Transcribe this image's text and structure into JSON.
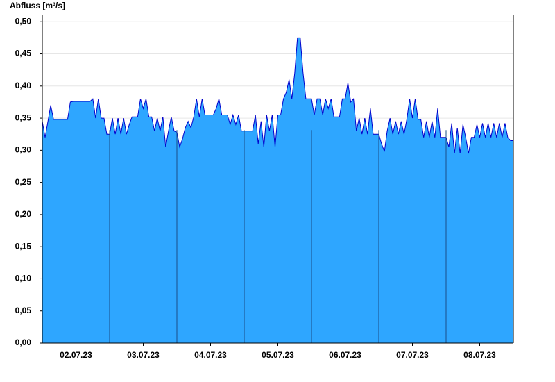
{
  "chart_data": {
    "type": "area",
    "title": "Abfluss [m³/s]",
    "x": [
      0,
      1,
      2,
      3,
      4,
      5,
      6,
      7,
      8,
      9,
      10,
      11,
      12,
      13,
      14,
      15,
      16,
      17,
      18,
      19,
      20,
      21,
      22,
      23,
      24,
      25,
      26,
      27,
      28,
      29,
      30,
      31,
      32,
      33,
      34,
      35,
      36,
      37,
      38,
      39,
      40,
      41,
      42,
      43,
      44,
      45,
      46,
      47,
      48,
      49,
      50,
      51,
      52,
      53,
      54,
      55,
      56,
      57,
      58,
      59,
      60,
      61,
      62,
      63,
      64,
      65,
      66,
      67,
      68,
      69,
      70,
      71,
      72,
      73,
      74,
      75,
      76,
      77,
      78,
      79,
      80,
      81,
      82,
      83,
      84,
      85,
      86,
      87,
      88,
      89,
      90,
      91,
      92,
      93,
      94,
      95,
      96,
      97,
      98,
      99,
      100,
      101,
      102,
      103,
      104,
      105,
      106,
      107,
      108,
      109,
      110,
      111,
      112,
      113,
      114,
      115,
      116,
      117,
      118,
      119,
      120,
      121,
      122,
      123,
      124,
      125,
      126,
      127,
      128,
      129,
      130,
      131,
      132,
      133,
      134,
      135,
      136,
      137,
      138,
      139,
      140,
      141,
      142,
      143,
      144,
      145,
      146,
      147,
      148,
      149,
      150,
      151,
      152,
      153,
      154,
      155,
      156,
      157,
      158,
      159,
      160,
      161,
      162,
      163,
      164,
      165,
      166,
      167,
      168
    ],
    "values": [
      0.345,
      0.32,
      0.345,
      0.37,
      0.348,
      0.348,
      0.348,
      0.348,
      0.348,
      0.348,
      0.375,
      0.376,
      0.376,
      0.376,
      0.376,
      0.376,
      0.376,
      0.376,
      0.38,
      0.35,
      0.38,
      0.35,
      0.35,
      0.325,
      0.325,
      0.35,
      0.325,
      0.35,
      0.325,
      0.35,
      0.325,
      0.34,
      0.352,
      0.352,
      0.352,
      0.38,
      0.365,
      0.38,
      0.352,
      0.352,
      0.33,
      0.35,
      0.33,
      0.352,
      0.305,
      0.33,
      0.352,
      0.33,
      0.328,
      0.305,
      0.318,
      0.335,
      0.345,
      0.335,
      0.352,
      0.38,
      0.352,
      0.38,
      0.355,
      0.355,
      0.355,
      0.355,
      0.365,
      0.38,
      0.355,
      0.355,
      0.355,
      0.34,
      0.355,
      0.34,
      0.355,
      0.33,
      0.33,
      0.33,
      0.33,
      0.33,
      0.355,
      0.31,
      0.345,
      0.305,
      0.355,
      0.33,
      0.355,
      0.305,
      0.355,
      0.355,
      0.38,
      0.39,
      0.41,
      0.38,
      0.42,
      0.475,
      0.475,
      0.42,
      0.38,
      0.38,
      0.38,
      0.355,
      0.38,
      0.38,
      0.355,
      0.38,
      0.365,
      0.38,
      0.352,
      0.352,
      0.352,
      0.38,
      0.38,
      0.405,
      0.375,
      0.38,
      0.33,
      0.35,
      0.325,
      0.35,
      0.325,
      0.365,
      0.325,
      0.325,
      0.325,
      0.31,
      0.298,
      0.33,
      0.35,
      0.325,
      0.345,
      0.325,
      0.345,
      0.325,
      0.348,
      0.38,
      0.35,
      0.38,
      0.348,
      0.348,
      0.32,
      0.345,
      0.32,
      0.345,
      0.32,
      0.365,
      0.32,
      0.32,
      0.32,
      0.305,
      0.342,
      0.295,
      0.335,
      0.295,
      0.34,
      0.32,
      0.295,
      0.32,
      0.32,
      0.34,
      0.32,
      0.342,
      0.32,
      0.342,
      0.32,
      0.342,
      0.32,
      0.342,
      0.32,
      0.342,
      0.32,
      0.315,
      0.315
    ],
    "color": "#2ea6ff",
    "line_color": "#0000cc",
    "xlim": [
      0,
      168
    ],
    "xticks": [
      {
        "value": 12,
        "label": "02.07.23"
      },
      {
        "value": 36,
        "label": "03.07.23"
      },
      {
        "value": 60,
        "label": "04.07.23"
      },
      {
        "value": 84,
        "label": "05.07.23"
      },
      {
        "value": 108,
        "label": "06.07.23"
      },
      {
        "value": 132,
        "label": "07.07.23"
      },
      {
        "value": 156,
        "label": "08.07.23"
      }
    ],
    "ylim": [
      0,
      0.51
    ],
    "yticks": [
      {
        "value": 0,
        "label": "0,00"
      },
      {
        "value": 0.05,
        "label": "0,05"
      },
      {
        "value": 0.1,
        "label": "0,10"
      },
      {
        "value": 0.15,
        "label": "0,15"
      },
      {
        "value": 0.2,
        "label": "0,20"
      },
      {
        "value": 0.25,
        "label": "0,25"
      },
      {
        "value": 0.3,
        "label": "0,30"
      },
      {
        "value": 0.35,
        "label": "0,35"
      },
      {
        "value": 0.4,
        "label": "0,40"
      },
      {
        "value": 0.45,
        "label": "0,45"
      },
      {
        "value": 0.5,
        "label": "0,50"
      }
    ],
    "grid": true
  }
}
